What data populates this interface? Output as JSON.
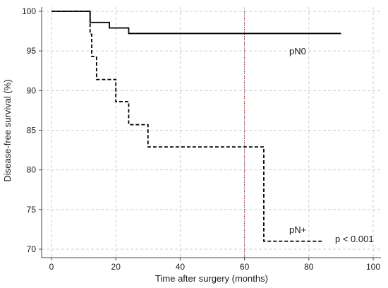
{
  "chart_data": {
    "type": "line",
    "xlabel": "Time after surgery (months)",
    "ylabel": "Disease-free survival (%)",
    "xlim": [
      0,
      100
    ],
    "ylim": [
      70,
      100
    ],
    "x_ticks": [
      0,
      20,
      40,
      60,
      80,
      100
    ],
    "y_ticks": [
      70,
      75,
      80,
      85,
      90,
      95,
      100
    ],
    "grid": true,
    "reference_line": {
      "x": 60,
      "color": "#8b1a1a",
      "style": "dotted"
    },
    "series": [
      {
        "name": "pN0",
        "step": true,
        "dash": "solid",
        "points": [
          [
            0,
            100
          ],
          [
            12,
            98.6
          ],
          [
            18,
            97.9
          ],
          [
            24,
            97.2
          ],
          [
            90,
            97.2
          ]
        ]
      },
      {
        "name": "pN+",
        "step": true,
        "dash": "dashed",
        "points": [
          [
            0,
            100
          ],
          [
            12,
            97.1
          ],
          [
            12.5,
            94.3
          ],
          [
            14,
            91.4
          ],
          [
            20,
            88.6
          ],
          [
            24,
            85.7
          ],
          [
            30,
            82.9
          ],
          [
            66,
            71.0
          ],
          [
            84,
            71.0
          ]
        ]
      }
    ],
    "annotation": "p < 0.001"
  }
}
